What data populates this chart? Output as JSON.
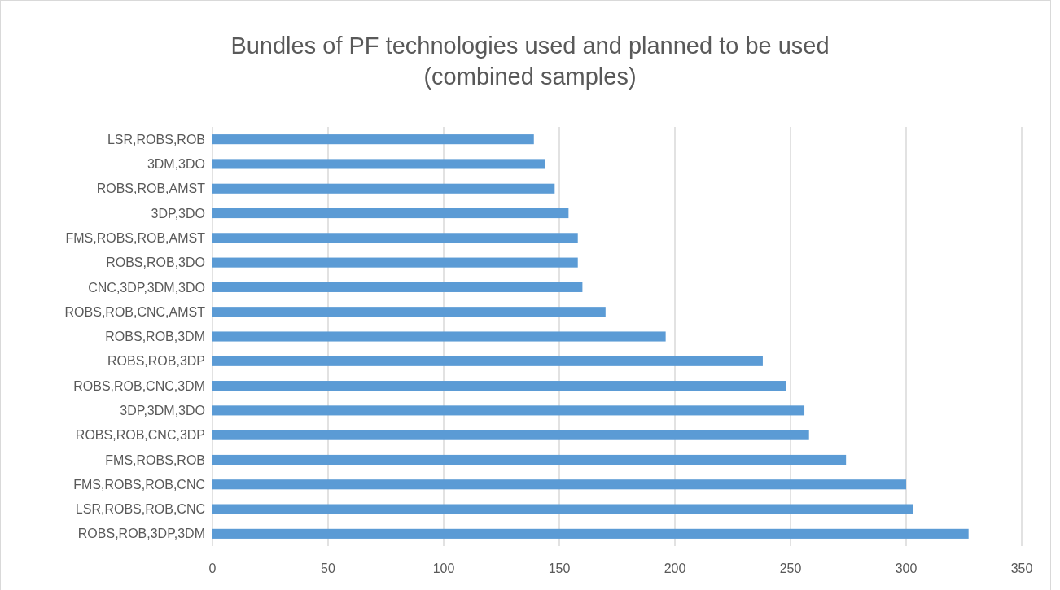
{
  "chart_data": {
    "type": "bar",
    "orientation": "horizontal",
    "title": "Bundles of PF technologies used and planned to be used\n(combined samples)",
    "categories": [
      "LSR,ROBS,ROB",
      "3DM,3DO",
      "ROBS,ROB,AMST",
      "3DP,3DO",
      "FMS,ROBS,ROB,AMST",
      "ROBS,ROB,3DO",
      "CNC,3DP,3DM,3DO",
      "ROBS,ROB,CNC,AMST",
      "ROBS,ROB,3DM",
      "ROBS,ROB,3DP",
      "ROBS,ROB,CNC,3DM",
      "3DP,3DM,3DO",
      "ROBS,ROB,CNC,3DP",
      "FMS,ROBS,ROB",
      "FMS,ROBS,ROB,CNC",
      "LSR,ROBS,ROB,CNC",
      "ROBS,ROB,3DP,3DM"
    ],
    "values": [
      139,
      144,
      148,
      154,
      158,
      158,
      160,
      170,
      196,
      238,
      248,
      256,
      258,
      274,
      300,
      303,
      327
    ],
    "color": "#5b9bd5",
    "xlim": [
      0,
      350
    ],
    "xticks": [
      0,
      50,
      100,
      150,
      200,
      250,
      300,
      350
    ],
    "grid": "x"
  }
}
